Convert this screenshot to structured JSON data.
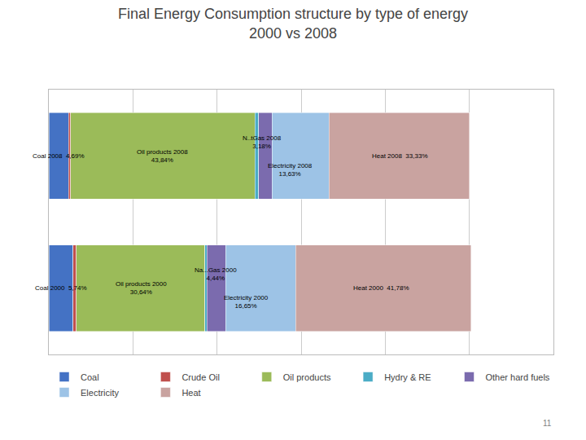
{
  "chart_data": {
    "type": "bar",
    "orientation": "horizontal",
    "stacked": true,
    "title": "Final Energy Consumption structure by type of energy\n2000 vs 2008",
    "categories": [
      "2008",
      "2000"
    ],
    "series": [
      {
        "name": "Coal",
        "color": "#4472C4",
        "values": [
          4.69,
          5.74
        ]
      },
      {
        "name": "Crude Oil",
        "color": "#C0504D",
        "values": [
          0.51,
          0.75
        ]
      },
      {
        "name": "Oil products",
        "color": "#9BBB59",
        "values": [
          43.84,
          30.64
        ]
      },
      {
        "name": "Hydry & RE",
        "color": "#4BACC6",
        "values": [
          0.82,
          0.44
        ]
      },
      {
        "name": "Other hard fuels",
        "color": "#7B6BAE",
        "values": [
          3.18,
          4.44
        ]
      },
      {
        "name": "Electricity",
        "color": "#9DC3E6",
        "values": [
          13.63,
          16.65
        ]
      },
      {
        "name": "Heat",
        "color": "#C9A3A0",
        "values": [
          33.33,
          41.78
        ]
      }
    ],
    "annotations": [
      {
        "text": "Coal 2008  4,69%",
        "x": 2.34,
        "y": "2008"
      },
      {
        "text": "Oil products 2008\n43,84%",
        "x": 27.01,
        "y": "2008"
      },
      {
        "text": "N..tGas 2008\n3,18%",
        "x": 50.67,
        "y": "2008"
      },
      {
        "text": "Electricity 2008\n13,63%",
        "x": 57.3,
        "y": "2008"
      },
      {
        "text": "Heat 2008  33,33%",
        "x": 83.5,
        "y": "2008"
      },
      {
        "text": "Coal 2000  5,74%",
        "x": 2.87,
        "y": "2000"
      },
      {
        "text": "Oil products 2000\n30,64%",
        "x": 22.0,
        "y": "2000"
      },
      {
        "text": "Na...Gas 2000\n4,44%",
        "x": 39.65,
        "y": "2000"
      },
      {
        "text": "Electricity 2000\n16,65%",
        "x": 47.0,
        "y": "2000"
      },
      {
        "text": "Heat 2000  41,78%",
        "x": 79.0,
        "y": "2000"
      }
    ],
    "footnote": "11",
    "xlim": [
      0,
      120
    ],
    "xticks": [
      0,
      20,
      40,
      60,
      80,
      100,
      120
    ],
    "grid": true,
    "tick_labels": false,
    "legend": "bottom"
  }
}
